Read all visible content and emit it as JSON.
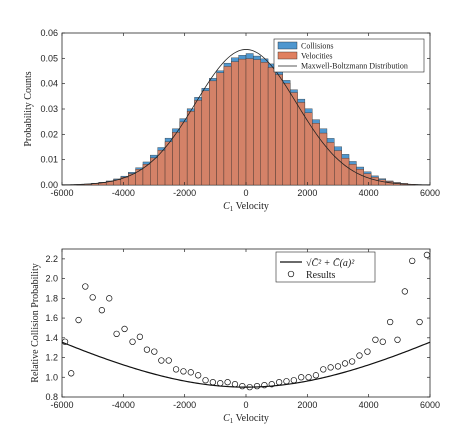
{
  "chart_data": [
    {
      "type": "bar",
      "xlabel_base": "C",
      "xlabel_sub": "1",
      "xlabel_rest": " Velocity",
      "ylabel": "Probability Counts",
      "xlim": [
        -6000,
        6000
      ],
      "ylim": [
        0,
        0.06
      ],
      "xticks": [
        -6000,
        -4000,
        -2000,
        0,
        2000,
        4000,
        6000
      ],
      "yticks": [
        0,
        0.01,
        0.02,
        0.03,
        0.04,
        0.05,
        0.06
      ],
      "bin_width": 240,
      "bin_centers": [
        -5400,
        -5160,
        -4920,
        -4680,
        -4440,
        -4200,
        -3960,
        -3720,
        -3480,
        -3240,
        -3000,
        -2760,
        -2520,
        -2280,
        -2040,
        -1800,
        -1560,
        -1320,
        -1080,
        -840,
        -600,
        -360,
        -120,
        120,
        360,
        600,
        840,
        1080,
        1320,
        1560,
        1800,
        2040,
        2280,
        2520,
        2760,
        3000,
        3240,
        3480,
        3720,
        3960,
        4200,
        4440,
        4680,
        4920,
        5160,
        5400
      ],
      "series": [
        {
          "name": "Collisions",
          "color": "#4f97cf",
          "values": [
            0.0002,
            0.0004,
            0.0007,
            0.0011,
            0.0016,
            0.0024,
            0.0035,
            0.005,
            0.0068,
            0.0091,
            0.0118,
            0.0148,
            0.0185,
            0.0222,
            0.0262,
            0.0301,
            0.0346,
            0.0382,
            0.0421,
            0.0451,
            0.0481,
            0.0502,
            0.0512,
            0.0519,
            0.0509,
            0.0498,
            0.0478,
            0.0447,
            0.0413,
            0.0376,
            0.0339,
            0.0301,
            0.0258,
            0.0222,
            0.0184,
            0.0151,
            0.0121,
            0.0093,
            0.0071,
            0.0052,
            0.0036,
            0.0025,
            0.0016,
            0.001,
            0.0006,
            0.0003
          ]
        },
        {
          "name": "Velocities",
          "color": "#e08060",
          "values": [
            0.0002,
            0.0003,
            0.0006,
            0.0009,
            0.0014,
            0.0021,
            0.0031,
            0.0045,
            0.0062,
            0.0082,
            0.0107,
            0.0137,
            0.0171,
            0.0208,
            0.0249,
            0.0291,
            0.0334,
            0.0372,
            0.0411,
            0.0443,
            0.0468,
            0.0487,
            0.0497,
            0.0499,
            0.0495,
            0.0484,
            0.0464,
            0.0436,
            0.0402,
            0.0365,
            0.0326,
            0.0285,
            0.0244,
            0.0205,
            0.0168,
            0.0136,
            0.0106,
            0.0082,
            0.0062,
            0.0045,
            0.0031,
            0.0021,
            0.0014,
            0.0009,
            0.0006,
            0.0003
          ]
        },
        {
          "name": "Maxwell-Boltzmann Distribution",
          "color": "#222222",
          "type": "gaussian_line",
          "peak": 0.0535,
          "sigma": 1640
        }
      ]
    },
    {
      "type": "scatter",
      "xlabel_base": "C",
      "xlabel_sub": "1",
      "xlabel_rest": " Velocity",
      "ylabel": "Relative Collision Probability",
      "xlim": [
        -6000,
        6000
      ],
      "ylim": [
        0.8,
        2.3
      ],
      "xticks": [
        -6000,
        -4000,
        -2000,
        0,
        2000,
        4000,
        6000
      ],
      "yticks": [
        0.8,
        1.0,
        1.2,
        1.4,
        1.6,
        1.8,
        2.0,
        2.2
      ],
      "series": [
        {
          "name": "√C̄² + C̄(a)²",
          "type": "line",
          "color": "#111111",
          "curve": {
            "c0": 0.9,
            "c1": 2.857e-08
          }
        },
        {
          "name": "Results",
          "type": "scatter",
          "color": "#111111",
          "x": [
            -5900,
            -5700,
            -5460,
            -5240,
            -5000,
            -4700,
            -4460,
            -4220,
            -3960,
            -3700,
            -3460,
            -3230,
            -2990,
            -2760,
            -2520,
            -2280,
            -2040,
            -1800,
            -1560,
            -1320,
            -1080,
            -840,
            -600,
            -360,
            -120,
            120,
            360,
            600,
            840,
            1080,
            1320,
            1560,
            1800,
            2040,
            2280,
            2520,
            2760,
            3000,
            3230,
            3460,
            3700,
            3960,
            4220,
            4460,
            4700,
            4940,
            5180,
            5420,
            5660,
            5900
          ],
          "y": [
            1.36,
            1.04,
            1.58,
            1.92,
            1.81,
            1.68,
            1.8,
            1.44,
            1.49,
            1.36,
            1.41,
            1.28,
            1.26,
            1.17,
            1.17,
            1.08,
            1.06,
            1.05,
            1.02,
            0.97,
            0.95,
            0.94,
            0.95,
            0.93,
            0.91,
            0.9,
            0.91,
            0.92,
            0.93,
            0.95,
            0.96,
            0.97,
            1.0,
            1.0,
            1.02,
            1.08,
            1.1,
            1.11,
            1.14,
            1.16,
            1.22,
            1.26,
            1.38,
            1.36,
            1.56,
            1.38,
            1.87,
            2.18,
            1.56,
            2.24
          ]
        }
      ]
    }
  ]
}
